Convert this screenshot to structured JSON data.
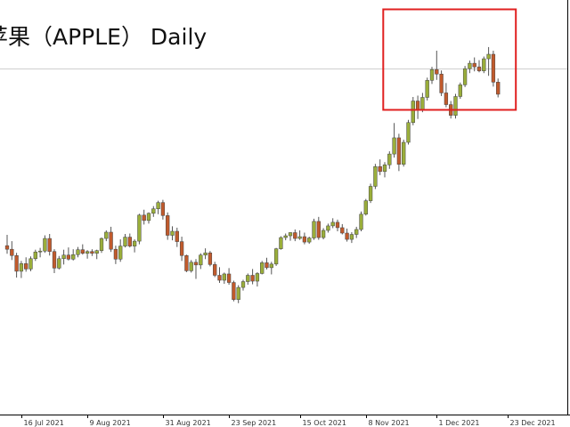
{
  "chart_data": {
    "type": "candlestick",
    "title": "苹果（APPLE） Daily",
    "x_tick_labels": [
      "16 Jul 2021",
      "9 Aug 2021",
      "31 Aug 2021",
      "23 Sep 2021",
      "15 Oct 2021",
      "8 Nov 2021",
      "1 Dec 2021",
      "23 Dec 2021"
    ],
    "colors": {
      "up": "#9aae3a",
      "down": "#c15a2c",
      "wick": "#555555",
      "highlight": "#e02020",
      "gridline": "#cfcfcf"
    },
    "horizontal_reference_line": true,
    "highlight_box": {
      "from": "1 Dec 2021",
      "to": "latest"
    },
    "candles": [
      [
        147.2,
        149.6,
        145.4,
        146.4
      ],
      [
        146.4,
        148.2,
        144.0,
        145.0
      ],
      [
        145.0,
        145.6,
        140.1,
        141.5
      ],
      [
        141.5,
        143.8,
        140.0,
        143.2
      ],
      [
        143.2,
        144.6,
        141.4,
        142.0
      ],
      [
        142.0,
        144.8,
        141.5,
        144.3
      ],
      [
        144.3,
        146.3,
        143.8,
        145.8
      ],
      [
        145.8,
        146.7,
        144.6,
        146.0
      ],
      [
        146.0,
        149.5,
        145.6,
        148.8
      ],
      [
        148.8,
        149.8,
        145.0,
        145.9
      ],
      [
        145.9,
        146.4,
        141.1,
        142.2
      ],
      [
        142.2,
        144.9,
        141.9,
        144.3
      ],
      [
        144.3,
        146.3,
        143.0,
        145.1
      ],
      [
        145.1,
        146.8,
        143.9,
        144.2
      ],
      [
        144.2,
        146.4,
        143.9,
        145.2
      ],
      [
        145.2,
        146.9,
        144.6,
        146.3
      ],
      [
        146.3,
        147.5,
        145.2,
        145.5
      ],
      [
        145.5,
        146.2,
        144.3,
        145.9
      ],
      [
        145.9,
        146.4,
        144.9,
        145.5
      ],
      [
        145.5,
        146.3,
        144.2,
        146.1
      ],
      [
        146.1,
        149.0,
        145.6,
        148.8
      ],
      [
        148.8,
        150.6,
        148.2,
        150.2
      ],
      [
        150.2,
        151.4,
        145.8,
        146.4
      ],
      [
        146.4,
        147.2,
        143.1,
        144.2
      ],
      [
        144.2,
        148.6,
        143.6,
        147.1
      ],
      [
        147.1,
        149.8,
        146.8,
        149.1
      ],
      [
        149.1,
        149.9,
        146.8,
        147.1
      ],
      [
        147.1,
        148.6,
        145.7,
        148.2
      ],
      [
        148.2,
        154.3,
        147.5,
        154.0
      ],
      [
        154.0,
        155.2,
        151.9,
        152.8
      ],
      [
        152.8,
        154.6,
        152.1,
        154.4
      ],
      [
        154.4,
        156.0,
        153.6,
        155.4
      ],
      [
        155.4,
        157.2,
        154.2,
        156.8
      ],
      [
        156.8,
        157.4,
        153.0,
        153.9
      ],
      [
        153.9,
        154.6,
        148.5,
        149.5
      ],
      [
        149.5,
        151.5,
        148.4,
        150.4
      ],
      [
        150.4,
        151.2,
        146.9,
        148.1
      ],
      [
        148.1,
        149.2,
        143.8,
        145.0
      ],
      [
        145.0,
        145.2,
        141.3,
        141.6
      ],
      [
        141.6,
        144.0,
        141.2,
        143.5
      ],
      [
        143.5,
        144.2,
        139.8,
        142.9
      ],
      [
        142.9,
        145.5,
        142.0,
        145.1
      ],
      [
        145.1,
        146.6,
        144.2,
        145.6
      ],
      [
        145.6,
        146.0,
        142.6,
        143.0
      ],
      [
        143.0,
        143.6,
        140.2,
        140.6
      ],
      [
        140.6,
        142.4,
        138.9,
        139.5
      ],
      [
        139.5,
        141.2,
        138.7,
        140.9
      ],
      [
        140.9,
        142.2,
        138.5,
        139.0
      ],
      [
        139.0,
        139.4,
        134.8,
        135.2
      ],
      [
        135.2,
        138.4,
        134.4,
        137.9
      ],
      [
        137.9,
        139.6,
        137.2,
        139.2
      ],
      [
        139.2,
        141.0,
        138.5,
        140.6
      ],
      [
        140.6,
        142.0,
        138.6,
        139.3
      ],
      [
        139.3,
        141.3,
        138.1,
        141.0
      ],
      [
        141.0,
        143.8,
        140.8,
        143.4
      ],
      [
        143.4,
        144.5,
        141.9,
        142.3
      ],
      [
        142.3,
        143.6,
        140.8,
        143.1
      ],
      [
        143.1,
        146.7,
        142.7,
        146.5
      ],
      [
        146.5,
        149.3,
        146.3,
        149.0
      ],
      [
        149.0,
        149.9,
        148.4,
        149.4
      ],
      [
        149.4,
        150.2,
        148.3,
        150.1
      ],
      [
        150.1,
        150.8,
        148.2,
        148.8
      ],
      [
        148.8,
        150.6,
        148.5,
        149.2
      ],
      [
        149.2,
        150.1,
        147.5,
        148.0
      ],
      [
        148.0,
        149.2,
        147.6,
        148.9
      ],
      [
        148.9,
        153.2,
        148.5,
        152.6
      ],
      [
        152.6,
        153.6,
        148.5,
        149.0
      ],
      [
        149.0,
        151.1,
        148.6,
        150.6
      ],
      [
        150.6,
        152.1,
        150.1,
        151.6
      ],
      [
        151.6,
        153.3,
        151.1,
        152.4
      ],
      [
        152.4,
        153.0,
        150.4,
        151.2
      ],
      [
        151.2,
        152.0,
        149.7,
        150.0
      ],
      [
        150.0,
        151.0,
        148.1,
        148.6
      ],
      [
        148.6,
        150.2,
        147.8,
        149.7
      ],
      [
        149.7,
        151.4,
        148.9,
        150.8
      ],
      [
        150.8,
        154.8,
        150.4,
        154.2
      ],
      [
        154.2,
        157.6,
        153.9,
        157.2
      ],
      [
        157.2,
        161.0,
        156.7,
        160.4
      ],
      [
        160.4,
        165.4,
        159.8,
        164.8
      ],
      [
        164.8,
        166.4,
        162.9,
        163.7
      ],
      [
        163.7,
        165.8,
        162.4,
        165.2
      ],
      [
        165.2,
        168.2,
        164.3,
        167.6
      ],
      [
        167.6,
        174.5,
        166.8,
        171.2
      ],
      [
        171.2,
        172.1,
        163.8,
        165.3
      ],
      [
        165.3,
        170.8,
        164.8,
        170.2
      ],
      [
        170.2,
        175.2,
        169.7,
        174.6
      ],
      [
        174.6,
        180.3,
        174.0,
        179.4
      ],
      [
        179.4,
        180.6,
        175.4,
        177.4
      ],
      [
        177.4,
        181.2,
        176.9,
        180.2
      ],
      [
        180.2,
        184.6,
        179.5,
        184.0
      ],
      [
        184.0,
        187.0,
        183.2,
        186.4
      ],
      [
        186.4,
        190.6,
        184.1,
        185.4
      ],
      [
        185.4,
        186.2,
        180.5,
        181.2
      ],
      [
        181.2,
        183.4,
        178.0,
        178.6
      ],
      [
        178.6,
        179.4,
        175.5,
        176.2
      ],
      [
        176.2,
        181.0,
        175.5,
        180.4
      ],
      [
        180.4,
        183.5,
        179.9,
        183.0
      ],
      [
        183.0,
        187.2,
        182.5,
        186.6
      ],
      [
        186.6,
        188.4,
        185.6,
        187.8
      ],
      [
        187.8,
        189.1,
        186.0,
        187.0
      ],
      [
        187.0,
        188.5,
        185.8,
        186.1
      ],
      [
        186.1,
        189.3,
        185.6,
        188.8
      ],
      [
        188.8,
        191.4,
        185.0,
        189.8
      ],
      [
        189.8,
        190.6,
        182.6,
        183.6
      ],
      [
        183.6,
        184.4,
        180.2,
        180.9
      ]
    ]
  }
}
